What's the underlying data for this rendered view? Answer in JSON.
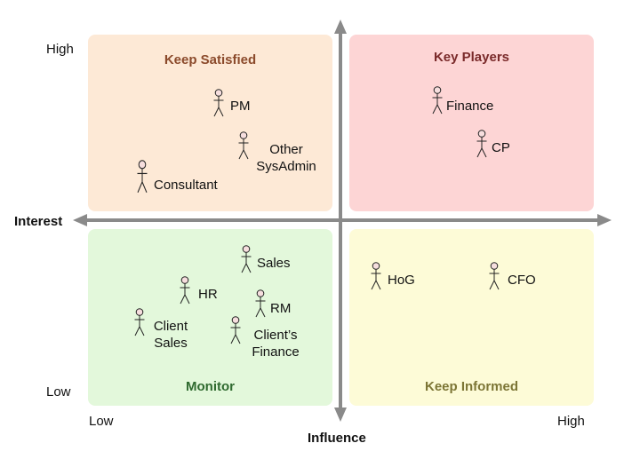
{
  "quadrants": {
    "keep_satisfied": {
      "title": "Keep Satisfied",
      "bg": "#fde9d6",
      "title_color": "#8b4a2b"
    },
    "key_players": {
      "title": "Key Players",
      "bg": "#fdd5d5",
      "title_color": "#7a2a2a"
    },
    "monitor": {
      "title": "Monitor",
      "bg": "#e3f8db",
      "title_color": "#2f6a2f"
    },
    "keep_informed": {
      "title": "Keep Informed",
      "bg": "#fdfbd7",
      "title_color": "#7c7535"
    }
  },
  "axes": {
    "y_title": "Interest",
    "x_title": "Influence",
    "y_high": "High",
    "y_low": "Low",
    "x_low": "Low",
    "x_high": "High",
    "color": "#8a8a8a"
  },
  "stakeholders": {
    "pm": {
      "name": "PM",
      "icon": "person-icon"
    },
    "other_sysadmin": {
      "line1": "Other",
      "line2": "SysAdmin",
      "icon": "person-icon"
    },
    "consultant": {
      "name": "Consultant",
      "icon": "person-icon"
    },
    "finance": {
      "name": "Finance",
      "icon": "person-icon"
    },
    "cp": {
      "name": "CP",
      "icon": "person-icon"
    },
    "sales": {
      "name": "Sales",
      "icon": "person-icon"
    },
    "hr": {
      "name": "HR",
      "icon": "person-icon"
    },
    "rm": {
      "name": "RM",
      "icon": "person-icon"
    },
    "client_sales": {
      "line1": "Client",
      "line2": "Sales",
      "icon": "person-icon"
    },
    "clients_finance": {
      "line1": "Client’s",
      "line2": "Finance",
      "icon": "person-icon"
    },
    "hog": {
      "name": "HoG",
      "icon": "person-icon"
    },
    "cfo": {
      "name": "CFO",
      "icon": "person-icon"
    }
  }
}
